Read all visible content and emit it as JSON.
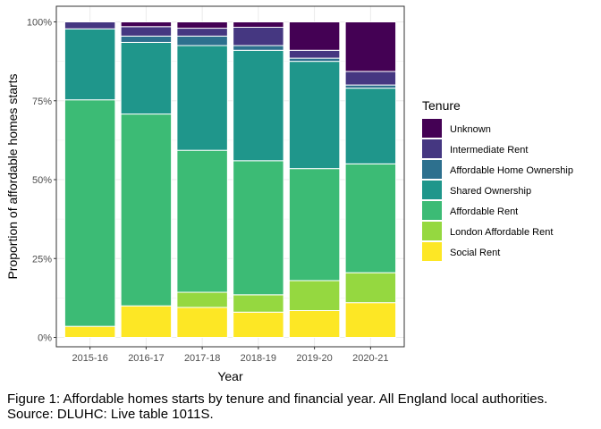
{
  "chart_data": {
    "type": "bar",
    "stacked": "percent",
    "xlabel": "Year",
    "ylabel": "Proportion of affordable homes starts",
    "categories": [
      "2015-16",
      "2016-17",
      "2017-18",
      "2018-19",
      "2019-20",
      "2020-21"
    ],
    "y_ticks": [
      "0%",
      "25%",
      "50%",
      "75%",
      "100%"
    ],
    "ylim": [
      0,
      1
    ],
    "legend": {
      "title": "Tenure",
      "placement": "right"
    },
    "grid": true,
    "series": [
      {
        "name": "Social Rent",
        "color": "#fde725",
        "values": [
          0.035,
          0.1,
          0.095,
          0.08,
          0.085,
          0.11
        ]
      },
      {
        "name": "London Affordable Rent",
        "color": "#95d840",
        "values": [
          0.0,
          0.0,
          0.048,
          0.055,
          0.095,
          0.095
        ]
      },
      {
        "name": "Affordable Rent",
        "color": "#3cbb75",
        "values": [
          0.718,
          0.608,
          0.45,
          0.425,
          0.355,
          0.345
        ]
      },
      {
        "name": "Shared Ownership",
        "color": "#1f968b",
        "values": [
          0.225,
          0.227,
          0.332,
          0.35,
          0.34,
          0.24
        ]
      },
      {
        "name": "Affordable Home Ownership",
        "color": "#2d708e",
        "values": [
          0.0,
          0.02,
          0.03,
          0.015,
          0.01,
          0.01
        ]
      },
      {
        "name": "Intermediate Rent",
        "color": "#453781",
        "values": [
          0.022,
          0.03,
          0.025,
          0.058,
          0.025,
          0.043
        ]
      },
      {
        "name": "Unknown",
        "color": "#440154",
        "values": [
          0.0,
          0.015,
          0.02,
          0.017,
          0.09,
          0.157
        ]
      }
    ]
  },
  "caption": {
    "line1": "Figure 1: Affordable homes starts by tenure and financial year. All England local authorities.",
    "line2": "Source: DLUHC: Live table 1011S."
  }
}
